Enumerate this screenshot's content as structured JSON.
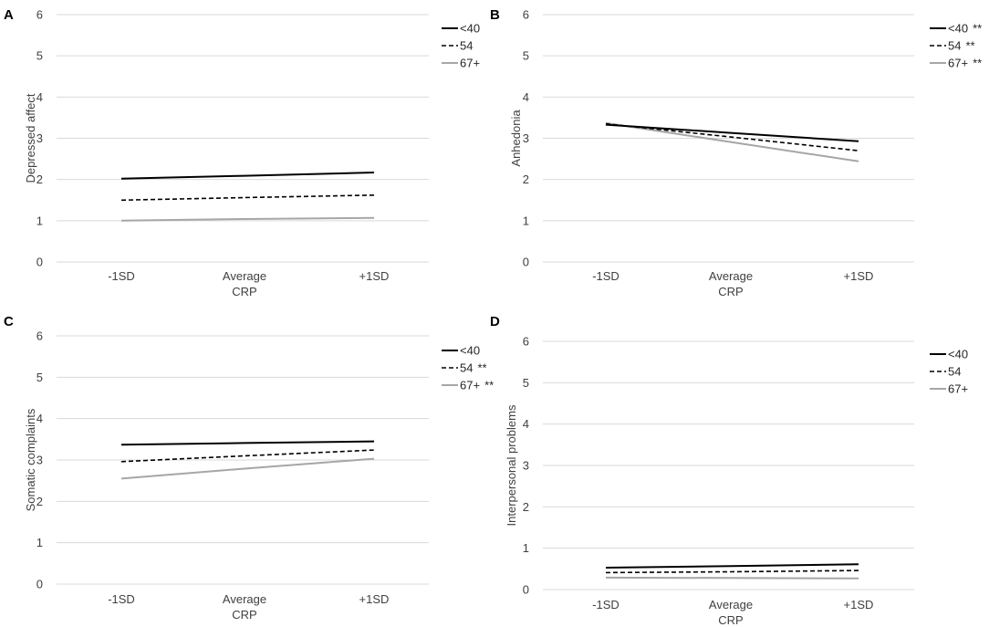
{
  "figure": {
    "styles": {
      "<40": {
        "color": "#000000",
        "dash": "none",
        "width": 2
      },
      "54": {
        "color": "#000000",
        "dash": "5,3",
        "width": 1.6
      },
      "67+": {
        "color": "#a6a6a6",
        "dash": "none",
        "width": 2
      }
    }
  },
  "chart_data": [
    {
      "type": "line",
      "panel": "A",
      "ylabel": "Depressed affect",
      "xlabel": "CRP",
      "categories": [
        "-1SD",
        "Average",
        "+1SD"
      ],
      "ylim": [
        0,
        6
      ],
      "yticks": [
        0,
        1,
        2,
        3,
        4,
        5,
        6
      ],
      "grid": true,
      "legend_position": "top-right",
      "series": [
        {
          "name": "<40",
          "legend_label": "<40",
          "significance": "",
          "values": [
            2.02,
            2.09,
            2.17
          ]
        },
        {
          "name": "54",
          "legend_label": "54",
          "significance": "",
          "values": [
            1.5,
            1.56,
            1.62
          ]
        },
        {
          "name": "67+",
          "legend_label": "67+",
          "significance": "",
          "values": [
            1.0,
            1.04,
            1.07
          ]
        }
      ]
    },
    {
      "type": "line",
      "panel": "B",
      "ylabel": "Anhedonia",
      "xlabel": "CRP",
      "categories": [
        "-1SD",
        "Average",
        "+1SD"
      ],
      "ylim": [
        0,
        6
      ],
      "yticks": [
        0,
        1,
        2,
        3,
        4,
        5,
        6
      ],
      "grid": true,
      "legend_position": "top-right",
      "series": [
        {
          "name": "<40",
          "legend_label": "<40",
          "significance": "**",
          "values": [
            3.33,
            3.13,
            2.93
          ]
        },
        {
          "name": "54",
          "legend_label": "54",
          "significance": "**",
          "values": [
            3.35,
            3.03,
            2.7
          ]
        },
        {
          "name": "67+",
          "legend_label": "67+",
          "significance": "**",
          "values": [
            3.37,
            2.91,
            2.44
          ]
        }
      ]
    },
    {
      "type": "line",
      "panel": "C",
      "ylabel": "Somatic complaints",
      "xlabel": "CRP",
      "categories": [
        "-1SD",
        "Average",
        "+1SD"
      ],
      "ylim": [
        0,
        6
      ],
      "yticks": [
        0,
        1,
        2,
        3,
        4,
        5,
        6
      ],
      "grid": true,
      "legend_position": "top-right",
      "series": [
        {
          "name": "<40",
          "legend_label": "<40",
          "significance": "",
          "values": [
            3.37,
            3.41,
            3.45
          ]
        },
        {
          "name": "54",
          "legend_label": "54",
          "significance": "**",
          "values": [
            2.96,
            3.1,
            3.24
          ]
        },
        {
          "name": "67+",
          "legend_label": "67+",
          "significance": "**",
          "values": [
            2.55,
            2.79,
            3.03
          ]
        }
      ]
    },
    {
      "type": "line",
      "panel": "D",
      "ylabel": "Interpersonal problems",
      "xlabel": "CRP",
      "categories": [
        "-1SD",
        "Average",
        "+1SD"
      ],
      "ylim": [
        0,
        6
      ],
      "yticks": [
        0,
        1,
        2,
        3,
        4,
        5,
        6
      ],
      "grid": true,
      "legend_position": "top-right",
      "series": [
        {
          "name": "<40",
          "legend_label": "<40",
          "significance": "",
          "values": [
            0.53,
            0.57,
            0.61
          ]
        },
        {
          "name": "54",
          "legend_label": "54",
          "significance": "",
          "values": [
            0.41,
            0.43,
            0.46
          ]
        },
        {
          "name": "67+",
          "legend_label": "67+",
          "significance": "",
          "values": [
            0.29,
            0.28,
            0.27
          ]
        }
      ]
    }
  ]
}
